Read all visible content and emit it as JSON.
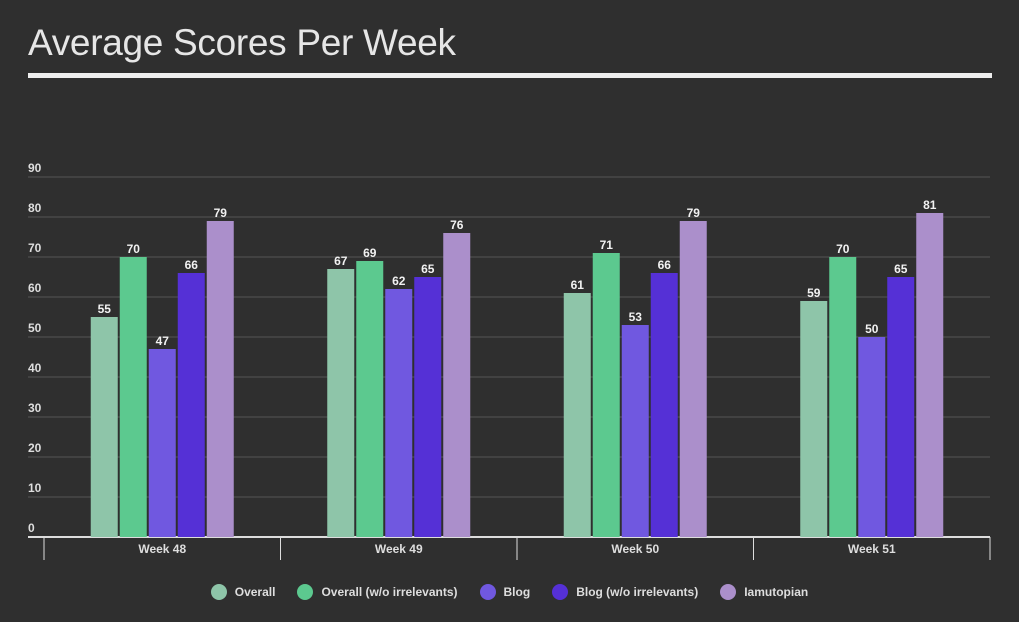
{
  "chart_data": {
    "type": "bar",
    "title": "Average Scores Per Week",
    "xlabel": "",
    "ylabel": "",
    "ylim": [
      0,
      90
    ],
    "yticks": [
      0,
      10,
      20,
      30,
      40,
      50,
      60,
      70,
      80,
      90
    ],
    "grid": true,
    "legend_position": "bottom",
    "categories": [
      "Week 48",
      "Week 49",
      "Week 50",
      "Week 51"
    ],
    "series": [
      {
        "name": "Overall",
        "color": "#8ec5a9",
        "values": [
          55,
          67,
          61,
          59
        ]
      },
      {
        "name": "Overall (w/o irrelevants)",
        "color": "#5cc98f",
        "values": [
          70,
          69,
          71,
          70
        ]
      },
      {
        "name": "Blog",
        "color": "#7058e0",
        "values": [
          47,
          62,
          53,
          50
        ]
      },
      {
        "name": "Blog (w/o irrelevants)",
        "color": "#5530d6",
        "values": [
          66,
          65,
          66,
          65
        ]
      },
      {
        "name": "Iamutopian",
        "color": "#ab8fcb",
        "values": [
          79,
          76,
          79,
          81
        ]
      }
    ]
  },
  "colors": {
    "background": "#2f2f2f",
    "gridline": "#555555",
    "axis": "#dddddd",
    "text": "#dedede"
  }
}
